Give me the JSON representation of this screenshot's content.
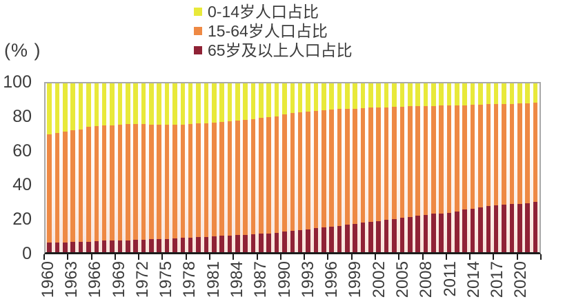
{
  "colors": {
    "series_0_14": "#e8e93a",
    "series_15_64": "#ee8944",
    "series_65_plus": "#8f2236",
    "axis_text": "#3c3c3c",
    "axis_line": "#1c1c1c",
    "plot_frame": "#a9a9a9"
  },
  "axes": {
    "y_unit_label": "(% )"
  },
  "chart_data": {
    "type": "bar",
    "stacked": true,
    "title": "",
    "xlabel": "",
    "ylabel": "(% )",
    "ylim": [
      0,
      100
    ],
    "yticks": [
      0,
      20,
      40,
      60,
      80,
      100
    ],
    "grid": false,
    "legend_position": "top-center",
    "stack_order_bottom_to_top": [
      "65岁及以上人口占比",
      "15-64岁人口占比",
      "0-14岁人口占比"
    ],
    "years": [
      1960,
      1961,
      1962,
      1963,
      1964,
      1965,
      1966,
      1967,
      1968,
      1969,
      1970,
      1971,
      1972,
      1973,
      1974,
      1975,
      1976,
      1977,
      1978,
      1979,
      1980,
      1981,
      1982,
      1983,
      1984,
      1985,
      1986,
      1987,
      1988,
      1989,
      1990,
      1991,
      1992,
      1993,
      1994,
      1995,
      1996,
      1997,
      1998,
      1999,
      2000,
      2001,
      2002,
      2003,
      2004,
      2005,
      2006,
      2007,
      2008,
      2009,
      2010,
      2011,
      2012,
      2013,
      2014,
      2015,
      2016,
      2017,
      2018,
      2019,
      2020,
      2021,
      2022
    ],
    "xtick_labels": [
      "1960",
      "1963",
      "1966",
      "1969",
      "1972",
      "1975",
      "1978",
      "1981",
      "1984",
      "1987",
      "1990",
      "1993",
      "1996",
      "1999",
      "2002",
      "2005",
      "2008",
      "2011",
      "2014",
      "2017",
      "2020"
    ],
    "series": [
      {
        "name": "0-14岁人口占比",
        "color": "#e8e93a",
        "values": [
          30.2,
          29.4,
          28.7,
          27.9,
          27.2,
          25.8,
          25.4,
          25.1,
          24.8,
          24.5,
          24.0,
          24.0,
          24.2,
          24.4,
          24.5,
          24.3,
          24.4,
          24.3,
          24.1,
          23.8,
          23.5,
          23.2,
          22.8,
          22.4,
          21.9,
          21.5,
          21.1,
          20.6,
          20.0,
          19.5,
          18.2,
          17.7,
          17.2,
          16.8,
          16.3,
          16.0,
          15.6,
          15.3,
          15.1,
          14.9,
          14.6,
          14.4,
          14.2,
          14.1,
          13.9,
          13.8,
          13.6,
          13.5,
          13.5,
          13.3,
          13.2,
          13.1,
          13.0,
          12.9,
          12.8,
          12.6,
          12.4,
          12.3,
          12.2,
          12.1,
          11.9,
          11.8,
          11.6
        ]
      },
      {
        "name": "15-64岁人口占比",
        "color": "#ee8944",
        "values": [
          64.1,
          64.8,
          65.4,
          66.0,
          66.6,
          67.9,
          68.0,
          68.1,
          68.3,
          68.4,
          68.9,
          68.7,
          68.3,
          67.9,
          67.6,
          67.8,
          67.4,
          67.3,
          67.3,
          67.4,
          67.4,
          67.4,
          67.6,
          67.7,
          68.0,
          68.2,
          68.3,
          68.5,
          68.8,
          68.9,
          69.7,
          69.8,
          69.8,
          69.7,
          69.6,
          69.4,
          69.3,
          69.0,
          68.7,
          68.4,
          68.0,
          67.8,
          67.4,
          66.9,
          66.6,
          66.0,
          65.6,
          65.0,
          64.4,
          64.0,
          63.8,
          63.6,
          62.9,
          62.0,
          61.3,
          60.8,
          60.3,
          60.0,
          59.7,
          59.5,
          59.5,
          59.4,
          58.5
        ]
      },
      {
        "name": "65岁及以上人口占比",
        "color": "#8f2236",
        "values": [
          5.7,
          5.8,
          5.9,
          6.1,
          6.2,
          6.3,
          6.6,
          6.8,
          6.9,
          7.1,
          7.1,
          7.3,
          7.5,
          7.7,
          7.9,
          7.9,
          8.2,
          8.4,
          8.6,
          8.8,
          9.1,
          9.4,
          9.6,
          9.9,
          10.1,
          10.3,
          10.6,
          10.9,
          11.2,
          11.6,
          12.1,
          12.5,
          13.0,
          13.5,
          14.1,
          14.6,
          15.1,
          15.7,
          16.2,
          16.7,
          17.4,
          17.8,
          18.4,
          19.0,
          19.5,
          20.2,
          20.8,
          21.5,
          22.1,
          22.7,
          23.0,
          23.3,
          24.1,
          25.1,
          25.9,
          26.6,
          27.3,
          27.7,
          28.1,
          28.4,
          28.6,
          28.8,
          29.9
        ]
      }
    ]
  }
}
